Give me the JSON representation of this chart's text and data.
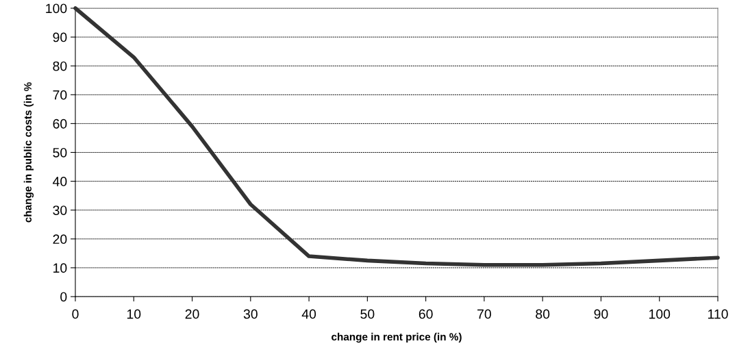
{
  "chart_data": {
    "type": "line",
    "xlabel": "change in rent price (in %)",
    "ylabel": "change in public costs (in %",
    "x": [
      0,
      10,
      20,
      30,
      40,
      50,
      60,
      70,
      80,
      90,
      100,
      110
    ],
    "series": [
      {
        "color": "#333333",
        "values": [
          100,
          83,
          59,
          32,
          14,
          12.5,
          11.5,
          11,
          11,
          11.5,
          12.5,
          13.5
        ]
      }
    ],
    "xlim": [
      0,
      110
    ],
    "xticks": [
      0,
      10,
      20,
      30,
      40,
      50,
      60,
      70,
      80,
      90,
      100,
      110
    ],
    "ylim": [
      0,
      100
    ],
    "yticks": [
      0,
      10,
      20,
      30,
      40,
      50,
      60,
      70,
      80,
      90,
      100
    ],
    "grid": "y",
    "legend": false,
    "marker": "none",
    "line_style": "solid"
  }
}
